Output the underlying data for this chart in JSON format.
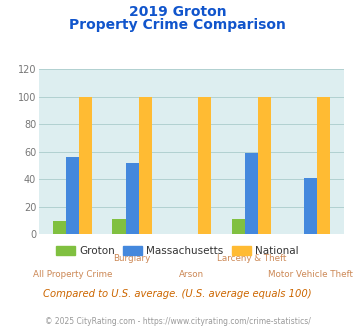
{
  "title_line1": "2019 Groton",
  "title_line2": "Property Crime Comparison",
  "categories": [
    "All Property Crime",
    "Burglary",
    "Arson",
    "Larceny & Theft",
    "Motor Vehicle Theft"
  ],
  "groton": [
    10,
    11,
    0,
    11,
    0
  ],
  "massachusetts": [
    56,
    52,
    0,
    59,
    41
  ],
  "national": [
    100,
    100,
    100,
    100,
    100
  ],
  "groton_color": "#80c040",
  "massachusetts_color": "#4488dd",
  "national_color": "#ffbb33",
  "title_color": "#1155cc",
  "xlabel_color": "#cc8855",
  "ylabel_color": "#777777",
  "background_color": "#ddeef0",
  "fig_background": "#ffffff",
  "ylim": [
    0,
    120
  ],
  "yticks": [
    0,
    20,
    40,
    60,
    80,
    100,
    120
  ],
  "grid_color": "#aacccc",
  "footer_text": "Compared to U.S. average. (U.S. average equals 100)",
  "credit_text": "© 2025 CityRating.com - https://www.cityrating.com/crime-statistics/",
  "footer_color": "#cc6600",
  "credit_color": "#999999",
  "bar_width": 0.22
}
